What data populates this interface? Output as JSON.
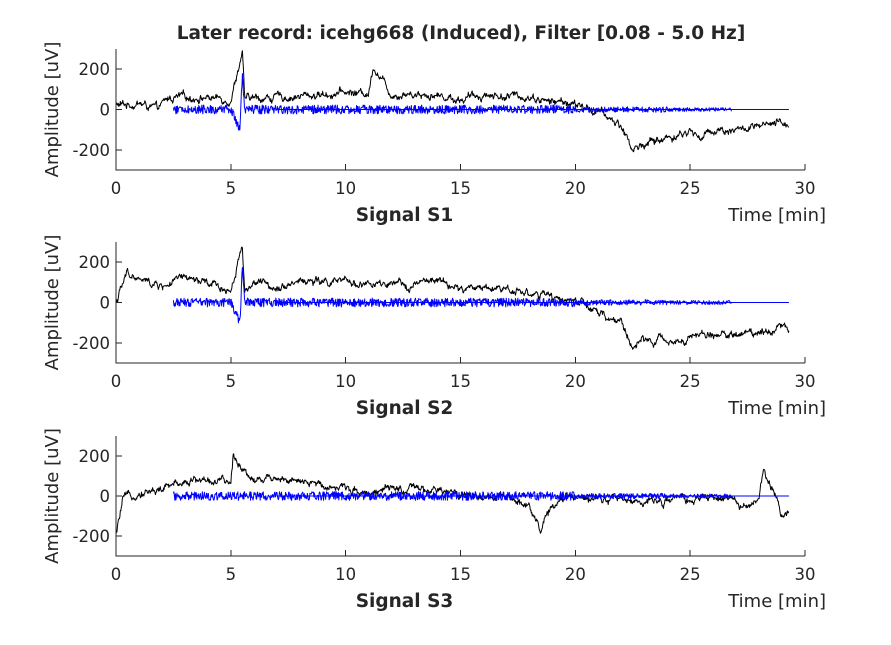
{
  "figure": {
    "title": "Later record: icehg668 (Induced), Filter [0.08 - 5.0 Hz]"
  },
  "chart_data": [
    {
      "type": "line",
      "title": "",
      "xlabel": "Signal S1",
      "x_unit_label": "Time [min]",
      "ylabel": "Amplitude [uV]",
      "xlim": [
        0,
        30
      ],
      "ylim": [
        -300,
        300
      ],
      "xticks": [
        "0",
        "5",
        "10",
        "15",
        "20",
        "25",
        "30"
      ],
      "yticks": [
        "200",
        "0",
        "-200"
      ],
      "grid": false,
      "colors": {
        "raw": "#000000",
        "filtered": "#0000ff"
      },
      "series": [
        {
          "key": "raw",
          "x": [
            0,
            1,
            1.8,
            2.3,
            3,
            4,
            5,
            5.5,
            5.6,
            6,
            7,
            8,
            9,
            10,
            11,
            11.2,
            12,
            13,
            14,
            15,
            16,
            17,
            18,
            19,
            19.5,
            20,
            21,
            22,
            22.5,
            23,
            24,
            25,
            25.5,
            26,
            27,
            28,
            29,
            29.3
          ],
          "y": [
            20,
            30,
            0,
            55,
            60,
            60,
            50,
            290,
            50,
            55,
            60,
            65,
            75,
            85,
            80,
            220,
            75,
            80,
            70,
            50,
            75,
            65,
            65,
            35,
            40,
            20,
            -10,
            -80,
            -200,
            -170,
            -140,
            -110,
            -140,
            -100,
            -100,
            -90,
            -70,
            -70
          ]
        },
        {
          "key": "filtered",
          "x": [
            2.5,
            5,
            5.4,
            5.5,
            5.6,
            7,
            10,
            15,
            19.5,
            20,
            21,
            25,
            26.8
          ],
          "y": [
            0,
            0,
            -100,
            180,
            0,
            0,
            0,
            0,
            0,
            0,
            0,
            0,
            0
          ]
        }
      ],
      "baseline_y": 0
    },
    {
      "type": "line",
      "title": "",
      "xlabel": "Signal S2",
      "x_unit_label": "Time [min]",
      "ylabel": "Amplitude [uV]",
      "xlim": [
        0,
        30
      ],
      "ylim": [
        -300,
        300
      ],
      "xticks": [
        "0",
        "5",
        "10",
        "15",
        "20",
        "25",
        "30"
      ],
      "yticks": [
        "200",
        "0",
        "-200"
      ],
      "grid": false,
      "colors": {
        "raw": "#000000",
        "filtered": "#0000ff"
      },
      "series": [
        {
          "key": "raw",
          "x": [
            0,
            0.5,
            1,
            2,
            3,
            4,
            5,
            5.5,
            5.6,
            6,
            7,
            8,
            9,
            10,
            11,
            12,
            13,
            14,
            15,
            16,
            17,
            18,
            19,
            20,
            21,
            22,
            22.5,
            23,
            24,
            25,
            26,
            27,
            28,
            29,
            29.3
          ],
          "y": [
            0,
            150,
            110,
            80,
            120,
            90,
            60,
            290,
            60,
            100,
            80,
            110,
            100,
            100,
            90,
            80,
            90,
            110,
            60,
            80,
            70,
            50,
            20,
            10,
            -60,
            -100,
            -220,
            -190,
            -190,
            -170,
            -160,
            -160,
            -140,
            -120,
            -130
          ]
        },
        {
          "key": "filtered",
          "x": [
            2.5,
            5,
            5.4,
            5.5,
            5.6,
            7,
            10,
            15,
            19.5,
            20,
            21,
            25,
            26.8
          ],
          "y": [
            0,
            0,
            -100,
            180,
            0,
            0,
            0,
            0,
            0,
            0,
            0,
            0,
            0
          ]
        }
      ],
      "baseline_y": 0
    },
    {
      "type": "line",
      "title": "",
      "xlabel": "Signal S3",
      "x_unit_label": "Time [min]",
      "ylabel": "Amplitude [uV]",
      "xlim": [
        0,
        30
      ],
      "ylim": [
        -300,
        300
      ],
      "xticks": [
        "0",
        "5",
        "10",
        "15",
        "20",
        "25",
        "30"
      ],
      "yticks": [
        "200",
        "0",
        "-200"
      ],
      "grid": false,
      "colors": {
        "raw": "#000000",
        "filtered": "#0000ff"
      },
      "series": [
        {
          "key": "raw",
          "x": [
            0,
            0.3,
            1,
            2,
            3,
            4,
            5,
            5.1,
            6,
            7,
            8,
            9,
            10,
            11,
            12,
            13,
            14,
            15,
            16,
            17,
            18,
            18.5,
            19,
            20,
            21,
            22,
            23,
            24,
            25,
            26,
            27,
            27.5,
            28,
            28.2,
            29,
            29.3
          ],
          "y": [
            -200,
            -20,
            20,
            30,
            80,
            80,
            60,
            200,
            80,
            100,
            60,
            60,
            40,
            20,
            30,
            30,
            20,
            10,
            0,
            -20,
            -40,
            -170,
            -40,
            0,
            0,
            -20,
            -30,
            -20,
            -20,
            -10,
            -20,
            -60,
            -30,
            140,
            -80,
            -80
          ]
        },
        {
          "key": "filtered",
          "x": [
            2.5,
            5,
            10,
            15,
            19.5,
            20,
            25,
            26.8
          ],
          "y": [
            0,
            0,
            0,
            0,
            0,
            0,
            0,
            0
          ]
        }
      ],
      "baseline_y": 0
    }
  ]
}
